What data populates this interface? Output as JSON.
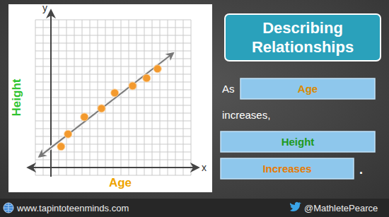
{
  "chart_data": {
    "type": "scatter",
    "xlabel": "Age",
    "ylabel": "Height",
    "annotations": [
      "x",
      "y"
    ],
    "x": [
      1.3,
      2.2,
      4.3,
      6.5,
      8.2,
      10.5,
      12.3,
      13.7
    ],
    "values": [
      2.7,
      4.3,
      6.5,
      7.6,
      9.6,
      10.5,
      11.5,
      12.7
    ],
    "color": "#f39a2e",
    "marker": "circle",
    "trend_line": {
      "x": [
        -1.5,
        15.7
      ],
      "values": [
        1.4,
        14.7
      ]
    },
    "xlim": [
      -2,
      18
    ],
    "ylim": [
      -1,
      19
    ],
    "xticks": [
      -2,
      -1,
      0,
      1,
      2,
      3,
      4,
      5,
      6,
      7,
      8,
      9,
      10,
      11,
      12,
      13,
      14,
      15,
      16,
      17,
      18
    ],
    "yticks": [
      -1,
      0,
      1,
      2,
      3,
      4,
      5,
      6,
      7,
      8,
      9,
      10,
      11,
      12,
      13,
      14,
      15,
      16,
      17,
      18,
      19
    ],
    "grid": true,
    "tick_labels": false
  },
  "slide": {
    "title": "Describing Relationships",
    "statement": {
      "lead": "As",
      "subject": "Age",
      "verb": "increases,",
      "result": "Height",
      "direction": "Increases",
      "end": "."
    },
    "footer": {
      "website": "www.tapintoteenminds.com",
      "twitter": "@MathletePearce"
    }
  }
}
